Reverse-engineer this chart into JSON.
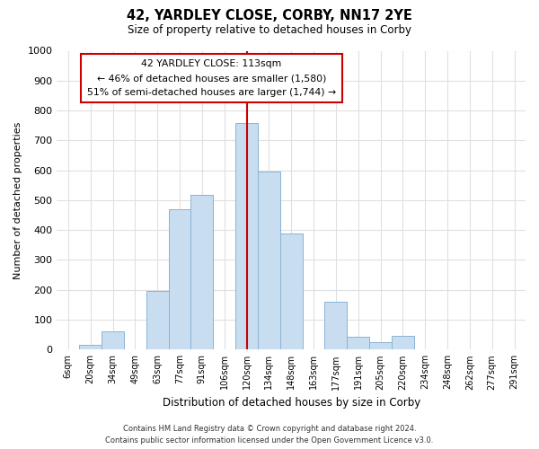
{
  "title": "42, YARDLEY CLOSE, CORBY, NN17 2YE",
  "subtitle": "Size of property relative to detached houses in Corby",
  "xlabel": "Distribution of detached houses by size in Corby",
  "ylabel": "Number of detached properties",
  "categories": [
    "6sqm",
    "20sqm",
    "34sqm",
    "49sqm",
    "63sqm",
    "77sqm",
    "91sqm",
    "106sqm",
    "120sqm",
    "134sqm",
    "148sqm",
    "163sqm",
    "177sqm",
    "191sqm",
    "205sqm",
    "220sqm",
    "234sqm",
    "248sqm",
    "262sqm",
    "277sqm",
    "291sqm"
  ],
  "values": [
    0,
    15,
    62,
    0,
    197,
    470,
    518,
    0,
    758,
    597,
    390,
    0,
    160,
    42,
    25,
    45,
    0,
    0,
    0,
    0,
    0
  ],
  "bar_color": "#c8ddf0",
  "bar_edge_color": "#8ab4d4",
  "marker_color": "#cc0000",
  "annotation_title": "42 YARDLEY CLOSE: 113sqm",
  "annotation_line1": "← 46% of detached houses are smaller (1,580)",
  "annotation_line2": "51% of semi-detached houses are larger (1,744) →",
  "ylim": [
    0,
    1000
  ],
  "footer1": "Contains HM Land Registry data © Crown copyright and database right 2024.",
  "footer2": "Contains public sector information licensed under the Open Government Licence v3.0.",
  "background_color": "#ffffff",
  "plot_background": "#ffffff"
}
